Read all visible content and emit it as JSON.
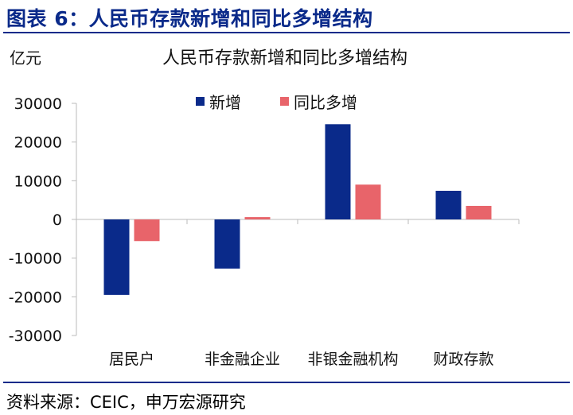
{
  "figure": {
    "label": "图表 6：人民币存款新增和同比多增结构",
    "source": "资料来源：CEIC，申万宏源研究"
  },
  "chart_data": {
    "type": "bar",
    "title": "人民币存款新增和同比多增结构",
    "unit": "亿元",
    "categories": [
      "居民户",
      "非金融企业",
      "非银金融机构",
      "财政存款"
    ],
    "series": [
      {
        "name": "新增",
        "values": [
          -19500,
          -12700,
          24600,
          7400
        ],
        "color": "#0a2a8a"
      },
      {
        "name": "同比多增",
        "values": [
          -5600,
          600,
          9000,
          3500
        ],
        "color": "#e8646a"
      }
    ],
    "ylim": [
      -30000,
      30000
    ],
    "yticks": [
      30000,
      20000,
      10000,
      0,
      -10000,
      -20000,
      -30000
    ],
    "ytick_labels": [
      "30000",
      "20000",
      "10000",
      "0",
      "-10000",
      "-20000",
      "-30000"
    ],
    "grid": false,
    "legend_position": "top"
  }
}
